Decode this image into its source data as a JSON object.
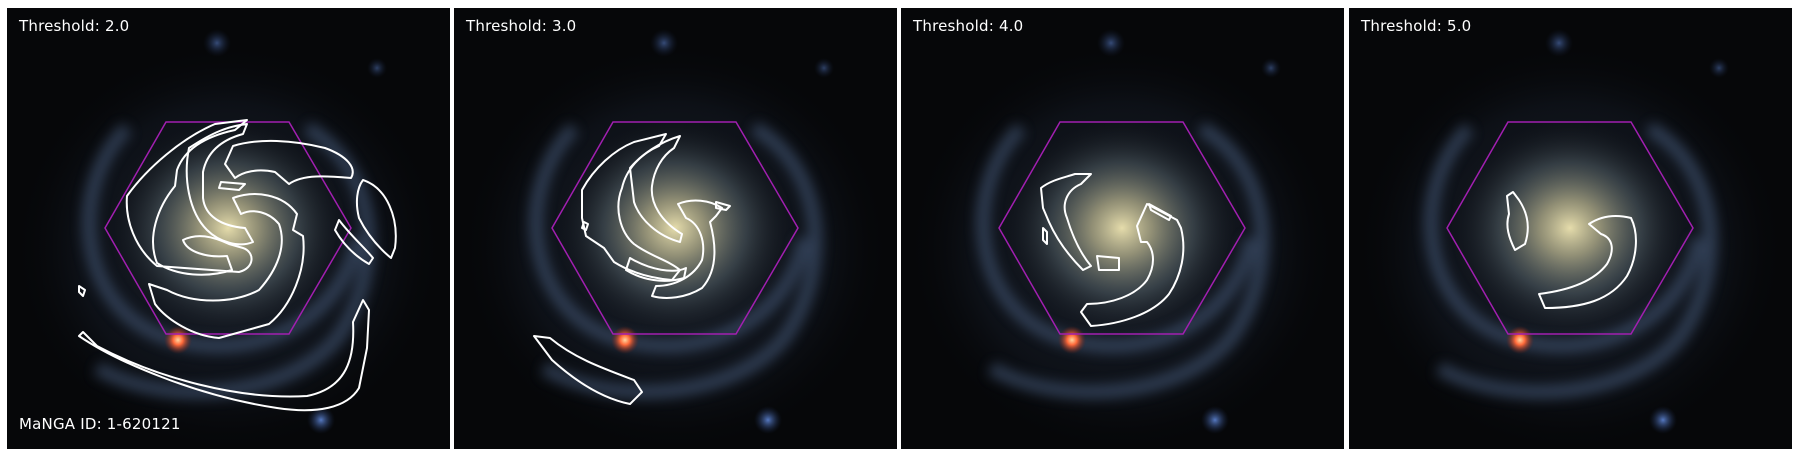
{
  "panels": [
    {
      "label": "Threshold: 2.0"
    },
    {
      "label": "Threshold: 3.0"
    },
    {
      "label": "Threshold: 4.0"
    },
    {
      "label": "Threshold: 5.0"
    }
  ],
  "manga_id": "MaNGA ID: 1-620121",
  "colors": {
    "background": "#ffffff",
    "hexagon": "#a11fb0",
    "contour": "#ffffff",
    "galaxy_core": "#d8cf9a",
    "star": "#ff6a3a",
    "sky": "#060709"
  }
}
